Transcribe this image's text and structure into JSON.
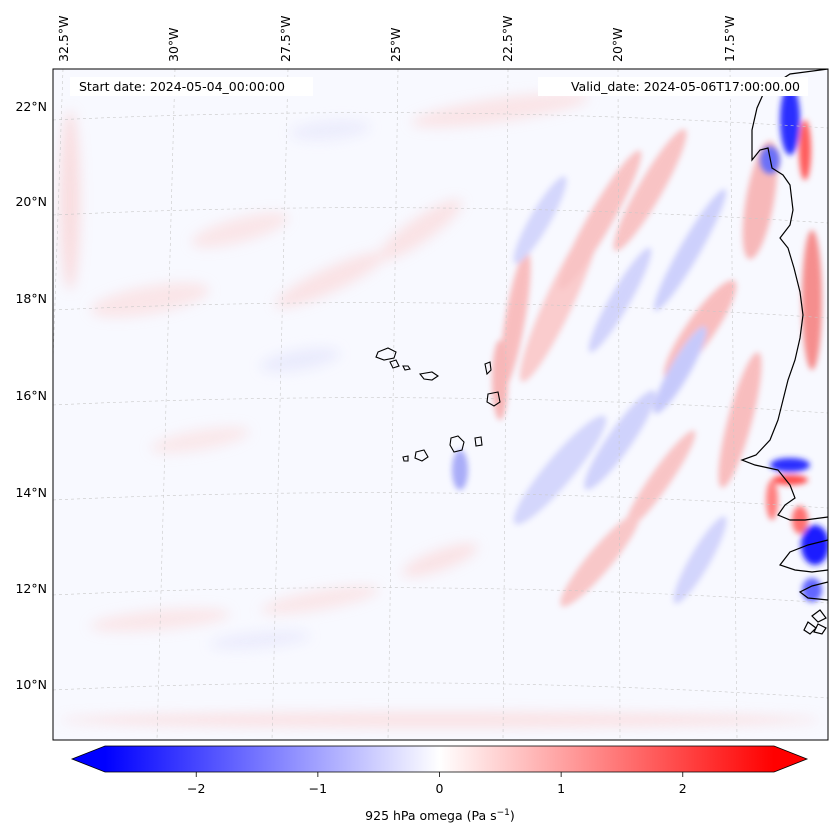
{
  "map": {
    "start_label": "Start date: 2024-05-04_00:00:00",
    "valid_label": "Valid_date: 2024-05-06T17:00:00.00",
    "lon_labels": [
      "32.5°W",
      "30°W",
      "27.5°W",
      "25°W",
      "22.5°W",
      "20°W",
      "17.5°W"
    ],
    "lat_labels": [
      "22°N",
      "20°N",
      "18°N",
      "16°N",
      "14°N",
      "12°N",
      "10°N"
    ],
    "colors": {
      "negative": "#0000ff",
      "zero": "#ffffff",
      "positive": "#ff0000",
      "coast": "#000000"
    }
  },
  "colorbar": {
    "variable": "925 hPa omega",
    "units": "Pa s",
    "units_exponent": "−1",
    "ticks": [
      "−2",
      "−1",
      "0",
      "1",
      "2"
    ],
    "tick_values": [
      -2,
      -1,
      0,
      1,
      2
    ],
    "range": [
      -2.75,
      2.75
    ]
  }
}
